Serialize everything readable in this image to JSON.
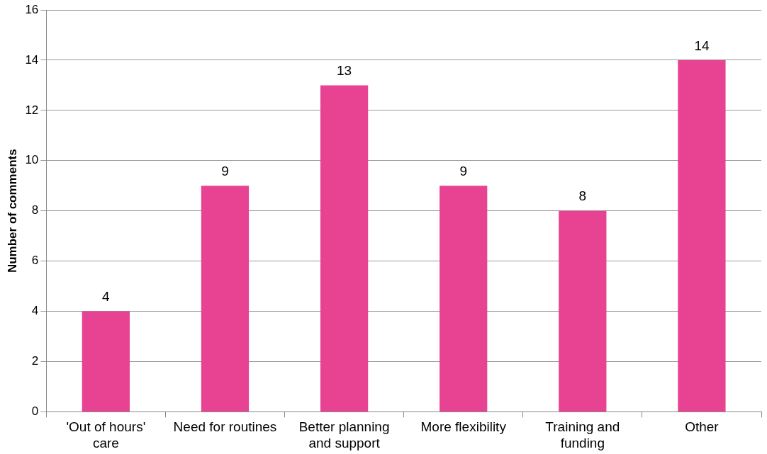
{
  "chart_data": {
    "type": "bar",
    "ylabel": "Number of comments",
    "categories": [
      "'Out of hours' care",
      "Need for routines",
      "Better planning and support",
      "More flexibility",
      "Training and funding",
      "Other"
    ],
    "values": [
      4,
      9,
      13,
      9,
      8,
      14
    ],
    "color": "#e84393",
    "ylim": [
      0,
      16
    ],
    "yticks": [
      0,
      2,
      4,
      6,
      8,
      10,
      12,
      14,
      16
    ],
    "grid": "y",
    "data_labels": true
  }
}
